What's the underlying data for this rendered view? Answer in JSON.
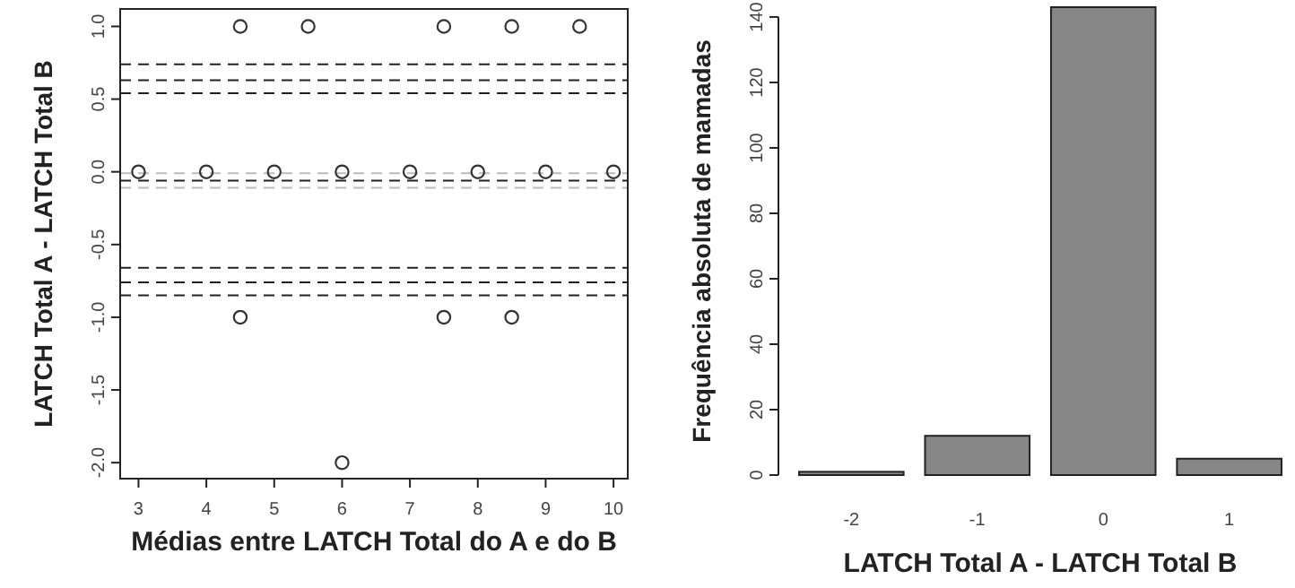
{
  "chart_data": [
    {
      "type": "scatter",
      "xlabel": "Médias entre LATCH Total do A e do B",
      "ylabel": "LATCH Total  A - LATCH Total B",
      "x": [
        3,
        4,
        4.5,
        5,
        5.5,
        6,
        7,
        7.5,
        8,
        8.5,
        9,
        9.5,
        10,
        4.5,
        7.5,
        8.5,
        6
      ],
      "values": [
        0,
        0,
        1,
        0,
        1,
        0,
        0,
        1,
        0,
        1,
        0,
        1,
        0,
        -1,
        -1,
        -1,
        -2
      ],
      "color": "#333333",
      "marker": "circle",
      "xlim": [
        2.73,
        10.21
      ],
      "ylim": [
        -2.11,
        1.12
      ],
      "xticks": [
        3,
        4,
        5,
        6,
        7,
        8,
        9,
        10
      ],
      "yticks": [
        {
          "value": -2,
          "label": "-2.0"
        },
        {
          "value": -1.5,
          "label": "-1.5"
        },
        {
          "value": -1,
          "label": "-1.0"
        },
        {
          "value": -0.5,
          "label": "-0.5"
        },
        {
          "value": 0,
          "label": "0.0"
        },
        {
          "value": 0.5,
          "label": "0.5"
        },
        {
          "value": 1,
          "label": "1.0"
        }
      ],
      "ref_lines": [
        {
          "axis": "y",
          "value": 0.74,
          "color": "#222222",
          "line_style": "dashed"
        },
        {
          "axis": "y",
          "value": 0.63,
          "color": "#222222",
          "line_style": "dashed"
        },
        {
          "axis": "y",
          "value": 0.54,
          "color": "#222222",
          "line_style": "dashed"
        },
        {
          "axis": "y",
          "value": -0.01,
          "color": "#bbbbbb",
          "line_style": "dashed"
        },
        {
          "axis": "y",
          "value": -0.06,
          "color": "#222222",
          "line_style": "dashed"
        },
        {
          "axis": "y",
          "value": -0.11,
          "color": "#bbbbbb",
          "line_style": "dashed"
        },
        {
          "axis": "y",
          "value": -0.66,
          "color": "#222222",
          "line_style": "dashed"
        },
        {
          "axis": "y",
          "value": -0.76,
          "color": "#222222",
          "line_style": "dashed"
        },
        {
          "axis": "y",
          "value": -0.85,
          "color": "#222222",
          "line_style": "dashed"
        }
      ],
      "grid": false
    },
    {
      "type": "bar",
      "xlabel": "LATCH Total A - LATCH Total B",
      "ylabel": "Frequência absoluta de mamadas",
      "categories": [
        "-2",
        "-1",
        "0",
        "1"
      ],
      "values": [
        1,
        12,
        143,
        5
      ],
      "color": "#868686",
      "ylim": [
        0,
        143
      ],
      "yticks": [
        0,
        20,
        40,
        60,
        80,
        100,
        120,
        140
      ],
      "grid": false
    }
  ]
}
